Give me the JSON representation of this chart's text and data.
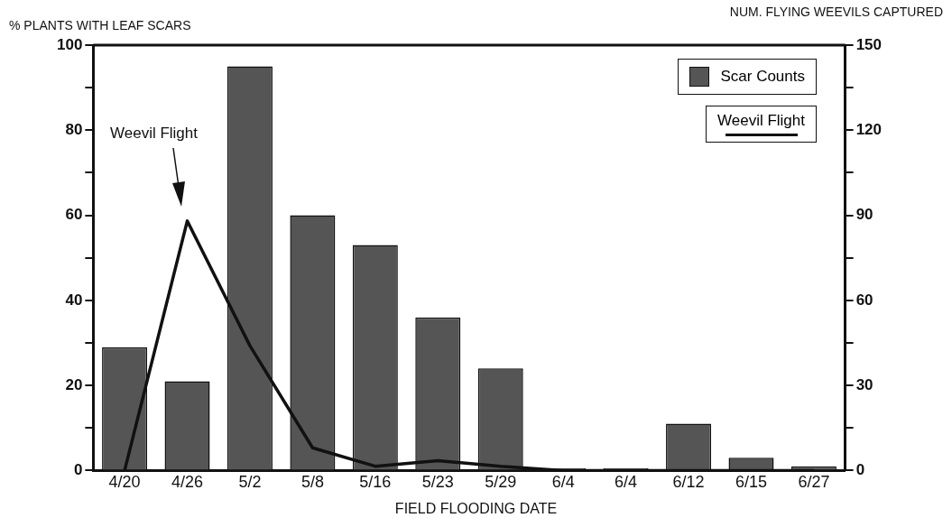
{
  "chart_data": {
    "type": "bar",
    "xlabel": "FIELD FLOODING DATE",
    "ylabel": "% PLANTS WITH LEAF SCARS",
    "y2label": "NUM. FLYING WEEVILS CAPTURED",
    "categories": [
      "4/20",
      "4/26",
      "5/2",
      "5/8",
      "5/16",
      "5/23",
      "5/29",
      "6/4",
      "6/4",
      "6/12",
      "6/15",
      "6/27"
    ],
    "series": [
      {
        "name": "Scar Counts",
        "color": "#555555",
        "values": [
          29,
          21,
          95,
          60,
          53,
          36,
          24,
          0.5,
          0.5,
          11,
          3,
          1
        ]
      },
      {
        "name": "Weevil Flight",
        "type": "line",
        "axis": "y2",
        "color": "#111111",
        "values": [
          0,
          88,
          44,
          8,
          1.5,
          3.5,
          1.5,
          0,
          0,
          0,
          0,
          0
        ]
      }
    ],
    "ylim": [
      0,
      100
    ],
    "yticks": [
      0,
      {
        "value": 10,
        "label": null
      },
      20,
      {
        "value": 30,
        "label": null
      },
      40,
      {
        "value": 50,
        "label": null
      },
      60,
      {
        "value": 70,
        "label": null
      },
      80,
      {
        "value": 90,
        "label": null
      },
      100
    ],
    "y2lim": [
      0,
      150
    ],
    "y2ticks": [
      0,
      {
        "value": 15,
        "label": null
      },
      30,
      {
        "value": 45,
        "label": null
      },
      60,
      {
        "value": 75,
        "label": null
      },
      90,
      {
        "value": 105,
        "label": null
      },
      120,
      {
        "value": 135,
        "label": null
      },
      150
    ],
    "annotations": [
      "Weevil Flight"
    ],
    "legend": "top right",
    "grid": false,
    "marker": "none",
    "line_style": "solid"
  }
}
